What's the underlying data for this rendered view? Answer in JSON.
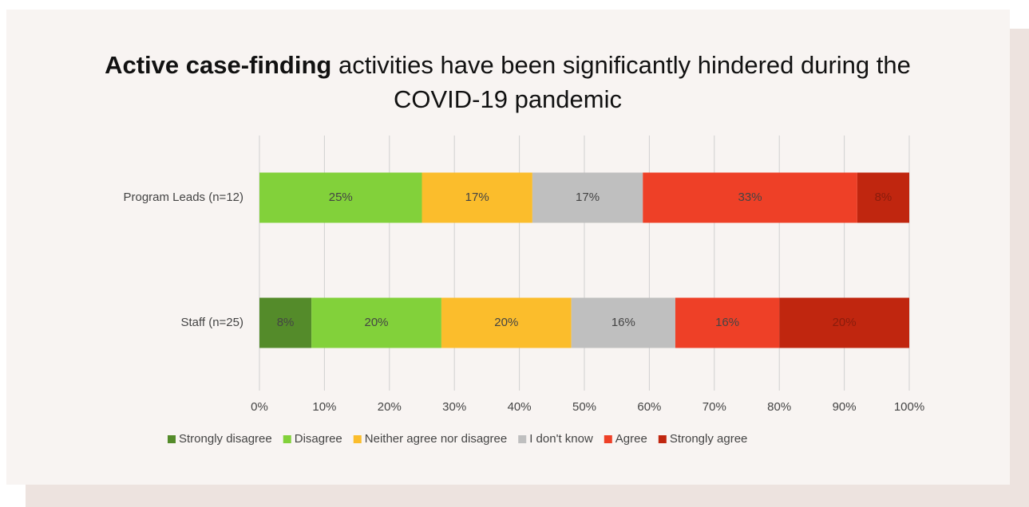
{
  "chart_data": {
    "type": "stacked_barh",
    "title_parts": [
      "Active case-finding",
      "activities have been significantly hindered during the COVID-19 pandemic"
    ],
    "categories": [
      "Program Leads (n=12)",
      "Staff (n=25)"
    ],
    "series": [
      {
        "name": "Strongly disagree",
        "color": "#548b2a",
        "values": [
          null,
          8
        ],
        "value_labels": [
          null,
          "8%"
        ]
      },
      {
        "name": "Disagree",
        "color": "#82d13a",
        "values": [
          25,
          20
        ],
        "value_labels": [
          "25%",
          "20%"
        ]
      },
      {
        "name": "Neither agree nor disagree",
        "color": "#fbbd2c",
        "values": [
          17,
          20
        ],
        "value_labels": [
          "17%",
          "20%"
        ]
      },
      {
        "name": "I don't know",
        "color": "#bfbfbf",
        "values": [
          17,
          16
        ],
        "value_labels": [
          "17%",
          "16%"
        ]
      },
      {
        "name": "Agree",
        "color": "#ee4027",
        "values": [
          33,
          16
        ],
        "value_labels": [
          "33%",
          "16%"
        ]
      },
      {
        "name": "Strongly agree",
        "color": "#c0260f",
        "values": [
          8,
          20
        ],
        "value_labels": [
          "8%",
          "20%"
        ]
      }
    ],
    "xlim": [
      0,
      100
    ],
    "xticks": [
      {
        "value": 0,
        "label": "0%"
      },
      {
        "value": 10,
        "label": "10%"
      },
      {
        "value": 20,
        "label": "20%"
      },
      {
        "value": 30,
        "label": "30%"
      },
      {
        "value": 40,
        "label": "40%"
      },
      {
        "value": 50,
        "label": "50%"
      },
      {
        "value": 60,
        "label": "60%"
      },
      {
        "value": 70,
        "label": "70%"
      },
      {
        "value": 80,
        "label": "80%"
      },
      {
        "value": 90,
        "label": "90%"
      },
      {
        "value": 100,
        "label": "100%"
      }
    ],
    "grid": true,
    "legend": "bottom"
  }
}
